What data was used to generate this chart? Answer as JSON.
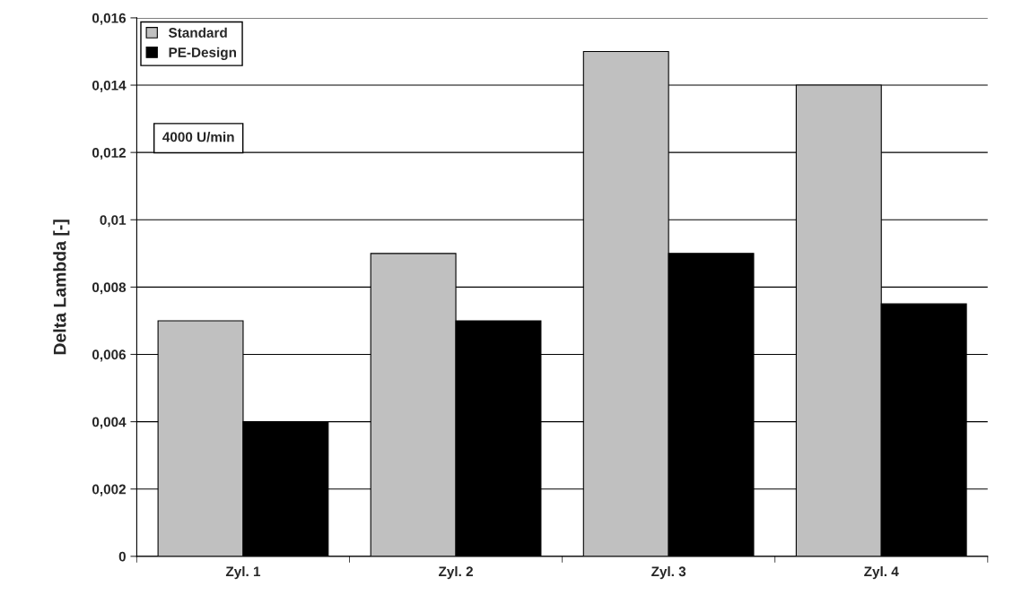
{
  "chart_data": {
    "type": "bar",
    "ylabel": "Delta Lambda [-]",
    "categories": [
      "Zyl. 1",
      "Zyl. 2",
      "Zyl. 3",
      "Zyl. 4"
    ],
    "series": [
      {
        "name": "Standard",
        "color": "#c0c0c0",
        "values": [
          0.007,
          0.009,
          0.015,
          0.014
        ]
      },
      {
        "name": "PE-Design",
        "color": "#000000",
        "values": [
          0.004,
          0.007,
          0.009,
          0.0075
        ]
      }
    ],
    "ylim": [
      0,
      0.016
    ],
    "yticks": [
      {
        "value": 0,
        "label": "0"
      },
      {
        "value": 0.002,
        "label": "0,002"
      },
      {
        "value": 0.004,
        "label": "0,004"
      },
      {
        "value": 0.006,
        "label": "0,006"
      },
      {
        "value": 0.008,
        "label": "0,008"
      },
      {
        "value": 0.01,
        "label": "0,01"
      },
      {
        "value": 0.012,
        "label": "0,012"
      },
      {
        "value": 0.014,
        "label": "0,014"
      },
      {
        "value": 0.016,
        "label": "0,016"
      }
    ],
    "grid": "y",
    "legend": "top left",
    "annotations": [
      "4000 U/min"
    ]
  }
}
